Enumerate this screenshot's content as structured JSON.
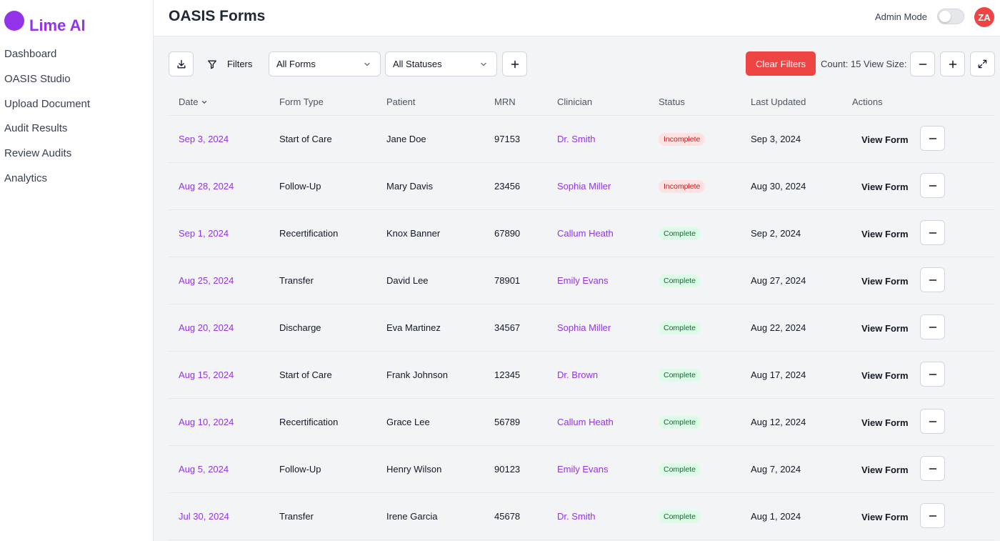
{
  "brand": {
    "name": "Lime AI"
  },
  "sidebar": {
    "items": [
      {
        "label": "Dashboard"
      },
      {
        "label": "OASIS Studio"
      },
      {
        "label": "Upload Document"
      },
      {
        "label": "Audit Results"
      },
      {
        "label": "Review Audits"
      },
      {
        "label": "Analytics"
      }
    ]
  },
  "header": {
    "title": "OASIS Forms",
    "admin_label": "Admin Mode",
    "admin_enabled": false,
    "avatar_initials": "ZA"
  },
  "toolbar": {
    "filters_label": "Filters",
    "form_select": "All Forms",
    "status_select": "All Statuses",
    "clear_label": "Clear Filters",
    "count_label": "Count: 15",
    "view_size_label": "View Size:"
  },
  "table": {
    "headers": {
      "date": "Date",
      "form_type": "Form Type",
      "patient": "Patient",
      "mrn": "MRN",
      "clinician": "Clinician",
      "status": "Status",
      "last_updated": "Last Updated",
      "actions": "Actions"
    },
    "action_label": "View Form",
    "rows": [
      {
        "date": "Sep 3, 2024",
        "form_type": "Start of Care",
        "patient": "Jane Doe",
        "mrn": "97153",
        "clinician": "Dr. Smith",
        "status": "Incomplete",
        "last_updated": "Sep 3, 2024"
      },
      {
        "date": "Aug 28, 2024",
        "form_type": "Follow-Up",
        "patient": "Mary Davis",
        "mrn": "23456",
        "clinician": "Sophia Miller",
        "status": "Incomplete",
        "last_updated": "Aug 30, 2024"
      },
      {
        "date": "Sep 1, 2024",
        "form_type": "Recertification",
        "patient": "Knox Banner",
        "mrn": "67890",
        "clinician": "Callum Heath",
        "status": "Complete",
        "last_updated": "Sep 2, 2024"
      },
      {
        "date": "Aug 25, 2024",
        "form_type": "Transfer",
        "patient": "David Lee",
        "mrn": "78901",
        "clinician": "Emily Evans",
        "status": "Complete",
        "last_updated": "Aug 27, 2024"
      },
      {
        "date": "Aug 20, 2024",
        "form_type": "Discharge",
        "patient": "Eva Martinez",
        "mrn": "34567",
        "clinician": "Sophia Miller",
        "status": "Complete",
        "last_updated": "Aug 22, 2024"
      },
      {
        "date": "Aug 15, 2024",
        "form_type": "Start of Care",
        "patient": "Frank Johnson",
        "mrn": "12345",
        "clinician": "Dr. Brown",
        "status": "Complete",
        "last_updated": "Aug 17, 2024"
      },
      {
        "date": "Aug 10, 2024",
        "form_type": "Recertification",
        "patient": "Grace Lee",
        "mrn": "56789",
        "clinician": "Callum Heath",
        "status": "Complete",
        "last_updated": "Aug 12, 2024"
      },
      {
        "date": "Aug 5, 2024",
        "form_type": "Follow-Up",
        "patient": "Henry Wilson",
        "mrn": "90123",
        "clinician": "Emily Evans",
        "status": "Complete",
        "last_updated": "Aug 7, 2024"
      },
      {
        "date": "Jul 30, 2024",
        "form_type": "Transfer",
        "patient": "Irene Garcia",
        "mrn": "45678",
        "clinician": "Dr. Smith",
        "status": "Complete",
        "last_updated": "Aug 1, 2024"
      }
    ]
  },
  "colors": {
    "accent": "#9333ea",
    "danger": "#ef4444",
    "incomplete_bg": "#fee2e2",
    "complete_bg": "#dcfce7"
  }
}
